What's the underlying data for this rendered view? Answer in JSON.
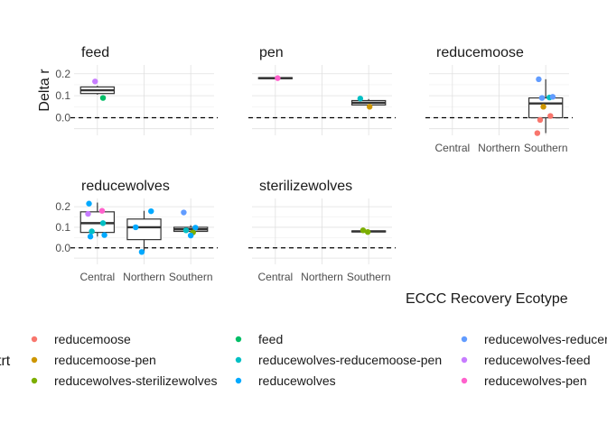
{
  "chart_data": {
    "type": "boxplot-faceted",
    "ylabel": "Delta r",
    "xlabel": "ECCC Recovery Ecotype",
    "categories": [
      "Central",
      "Northern",
      "Southern"
    ],
    "ylim": [
      -0.08,
      0.24
    ],
    "yticks": [
      0.0,
      0.1,
      0.2
    ],
    "ytick_labels": [
      "0.0",
      "0.1",
      "0.2"
    ],
    "reference_line": 0.0,
    "legend_title": "trt",
    "legend": [
      {
        "name": "reducemoose",
        "color": "#F8766D"
      },
      {
        "name": "reducemoose-pen",
        "color": "#CD9600"
      },
      {
        "name": "reducewolves-sterilizewolves",
        "color": "#7CAE00"
      },
      {
        "name": "feed",
        "color": "#00BE67"
      },
      {
        "name": "reducewolves-reducemoose-pen",
        "color": "#00BFC4"
      },
      {
        "name": "reducewolves",
        "color": "#00A9FF"
      },
      {
        "name": "reducewolves-reducemoose",
        "color": "#619CFF"
      },
      {
        "name": "reducewolves-feed",
        "color": "#C77CFF"
      },
      {
        "name": "reducewolves-pen",
        "color": "#FF61CC"
      }
    ],
    "facets": [
      {
        "name": "feed",
        "show_x_labels": false,
        "boxes": [
          {
            "category": "Central",
            "q1": 0.11,
            "median": 0.125,
            "q3": 0.14,
            "whisker_low": 0.105,
            "whisker_high": 0.145
          }
        ],
        "points": [
          {
            "category": "Central",
            "jitter": -0.05,
            "value": 0.165,
            "trt": "reducewolves-feed"
          },
          {
            "category": "Central",
            "jitter": 0.12,
            "value": 0.09,
            "trt": "feed"
          }
        ]
      },
      {
        "name": "pen",
        "show_x_labels": false,
        "boxes": [
          {
            "category": "Central",
            "q1": 0.178,
            "median": 0.18,
            "q3": 0.182,
            "whisker_low": 0.178,
            "whisker_high": 0.182
          },
          {
            "category": "Southern",
            "q1": 0.058,
            "median": 0.068,
            "q3": 0.078,
            "whisker_low": 0.05,
            "whisker_high": 0.085
          }
        ],
        "points": [
          {
            "category": "Central",
            "jitter": 0.05,
            "value": 0.18,
            "trt": "reducewolves-pen"
          },
          {
            "category": "Southern",
            "jitter": -0.18,
            "value": 0.087,
            "trt": "reducewolves-reducemoose-pen"
          },
          {
            "category": "Southern",
            "jitter": 0.02,
            "value": 0.05,
            "trt": "reducemoose-pen"
          }
        ]
      },
      {
        "name": "reducemoose",
        "show_x_labels": true,
        "boxes": [
          {
            "category": "Southern",
            "q1": 0.0,
            "median": 0.065,
            "q3": 0.09,
            "whisker_low": -0.07,
            "whisker_high": 0.175
          }
        ],
        "points": [
          {
            "category": "Southern",
            "jitter": -0.15,
            "value": 0.175,
            "trt": "reducewolves-reducemoose"
          },
          {
            "category": "Southern",
            "jitter": -0.08,
            "value": 0.09,
            "trt": "reducewolves-reducemoose"
          },
          {
            "category": "Southern",
            "jitter": 0.08,
            "value": 0.092,
            "trt": "reducewolves-reducemoose-pen"
          },
          {
            "category": "Southern",
            "jitter": 0.15,
            "value": 0.095,
            "trt": "reducewolves-reducemoose"
          },
          {
            "category": "Southern",
            "jitter": -0.05,
            "value": 0.05,
            "trt": "reducemoose-pen"
          },
          {
            "category": "Southern",
            "jitter": 0.1,
            "value": 0.008,
            "trt": "reducemoose"
          },
          {
            "category": "Southern",
            "jitter": -0.12,
            "value": -0.01,
            "trt": "reducemoose"
          },
          {
            "category": "Southern",
            "jitter": -0.18,
            "value": -0.07,
            "trt": "reducemoose"
          }
        ]
      },
      {
        "name": "reducewolves",
        "show_x_labels": true,
        "boxes": [
          {
            "category": "Central",
            "q1": 0.075,
            "median": 0.12,
            "q3": 0.175,
            "whisker_low": 0.055,
            "whisker_high": 0.22
          },
          {
            "category": "Northern",
            "q1": 0.04,
            "median": 0.1,
            "q3": 0.14,
            "whisker_low": -0.02,
            "whisker_high": 0.18
          },
          {
            "category": "Southern",
            "q1": 0.08,
            "median": 0.09,
            "q3": 0.1,
            "whisker_low": 0.06,
            "whisker_high": 0.11
          }
        ],
        "points": [
          {
            "category": "Central",
            "jitter": -0.18,
            "value": 0.215,
            "trt": "reducewolves"
          },
          {
            "category": "Central",
            "jitter": -0.2,
            "value": 0.165,
            "trt": "reducewolves-feed"
          },
          {
            "category": "Central",
            "jitter": 0.1,
            "value": 0.18,
            "trt": "reducewolves-pen"
          },
          {
            "category": "Central",
            "jitter": 0.12,
            "value": 0.12,
            "trt": "reducewolves-reducemoose-pen"
          },
          {
            "category": "Central",
            "jitter": -0.12,
            "value": 0.08,
            "trt": "reducewolves-reducemoose-pen"
          },
          {
            "category": "Central",
            "jitter": -0.15,
            "value": 0.055,
            "trt": "reducewolves"
          },
          {
            "category": "Central",
            "jitter": 0.15,
            "value": 0.062,
            "trt": "reducewolves"
          },
          {
            "category": "Northern",
            "jitter": 0.15,
            "value": 0.178,
            "trt": "reducewolves"
          },
          {
            "category": "Northern",
            "jitter": -0.18,
            "value": 0.1,
            "trt": "reducewolves"
          },
          {
            "category": "Northern",
            "jitter": -0.05,
            "value": -0.02,
            "trt": "reducewolves"
          },
          {
            "category": "Southern",
            "jitter": -0.15,
            "value": 0.172,
            "trt": "reducewolves-reducemoose"
          },
          {
            "category": "Southern",
            "jitter": 0.1,
            "value": 0.098,
            "trt": "reducewolves"
          },
          {
            "category": "Southern",
            "jitter": -0.1,
            "value": 0.085,
            "trt": "reducewolves-reducemoose-pen"
          },
          {
            "category": "Southern",
            "jitter": 0.05,
            "value": 0.075,
            "trt": "reducewolves-sterilizewolves"
          },
          {
            "category": "Southern",
            "jitter": 0.0,
            "value": 0.06,
            "trt": "reducewolves"
          }
        ]
      },
      {
        "name": "sterilizewolves",
        "show_x_labels": true,
        "boxes": [
          {
            "category": "Southern",
            "q1": 0.078,
            "median": 0.08,
            "q3": 0.082,
            "whisker_low": 0.076,
            "whisker_high": 0.084
          }
        ],
        "points": [
          {
            "category": "Southern",
            "jitter": -0.12,
            "value": 0.085,
            "trt": "reducewolves-sterilizewolves"
          },
          {
            "category": "Southern",
            "jitter": -0.02,
            "value": 0.077,
            "trt": "reducewolves-sterilizewolves"
          }
        ]
      }
    ]
  }
}
